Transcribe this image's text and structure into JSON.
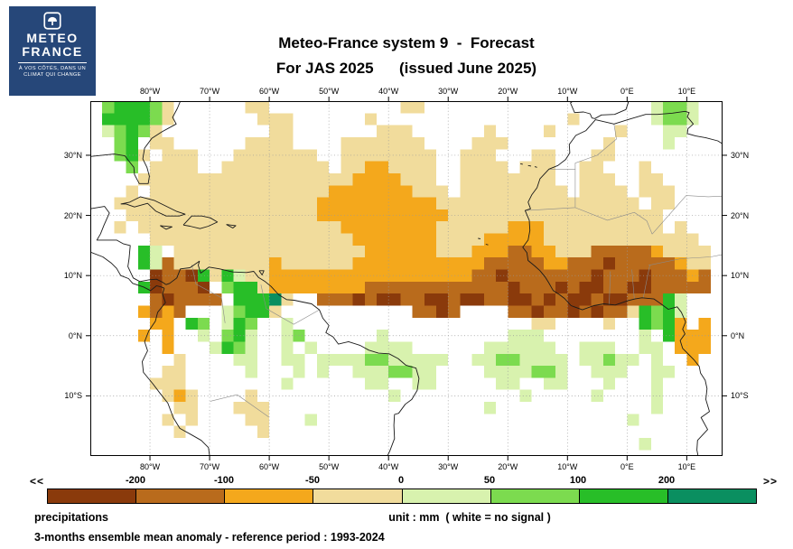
{
  "logo": {
    "brand_line1": "METEO",
    "brand_line2": "FRANCE",
    "tagline": "À VOS CÔTÉS, DANS UN CLIMAT QUI CHANGE",
    "bg_color": "#264779"
  },
  "title": {
    "line1": "Meteo-France system 9  -  Forecast",
    "line2": "For JAS 2025      (issued June 2025)"
  },
  "map": {
    "lon_tick_labels": [
      "80°W",
      "70°W",
      "60°W",
      "50°W",
      "40°W",
      "30°W",
      "20°W",
      "10°W",
      "0°E",
      "10°E"
    ],
    "lon_tick_values": [
      -80,
      -70,
      -60,
      -50,
      -40,
      -30,
      -20,
      -10,
      0,
      10
    ],
    "lat_tick_labels": [
      "30°N",
      "20°N",
      "10°N",
      "0°N",
      "10°S"
    ],
    "lat_tick_values": [
      30,
      20,
      10,
      0,
      -10
    ],
    "extent": {
      "lon_min": -90,
      "lon_max": 16,
      "lat_max": 39,
      "lat_min": -20
    }
  },
  "footer": {
    "label_left": "precipitations",
    "label_unit": "unit : mm  ( white = no signal )",
    "label_bottom": "3-months ensemble mean anomaly - reference period : 1993-2024"
  },
  "chart_data": {
    "type": "heatmap",
    "title": "Meteo-France system 9 - Forecast For JAS 2025 (issued June 2025)",
    "variable": "precipitations",
    "unit": "mm",
    "no_signal_color": "white",
    "note": "3-months ensemble mean anomaly - reference period : 1993-2024",
    "colorbar": {
      "arrow_left": "<<",
      "arrow_right": ">>",
      "boundary_labels": [
        "-200",
        "-100",
        "-50",
        "0",
        "50",
        "100",
        "200"
      ],
      "segment_order": [
        "a",
        "b",
        "c",
        "d",
        "e",
        "f",
        "g",
        "h"
      ],
      "palette": {
        "a": "#8A3A0B",
        "b": "#B96B1C",
        "c": "#F4A81C",
        "d": "#F1DC9C",
        "e": "#D8F2AE",
        "f": "#7CDB4F",
        "g": "#28BE28",
        "h": "#0A8F60"
      },
      "legend": {
        "a": "below -200 mm",
        "b": "-200 to -100 mm",
        "c": "-100 to -50 mm",
        "d": "-50 to 0 mm",
        "e": "0 to 50 mm",
        "f": "50 to 100 mm",
        "g": "100 to 200 mm",
        "h": "above 200 mm",
        ".": "white = no signal"
      }
    },
    "grid": {
      "origin_lon": -88,
      "origin_lat": 39,
      "cell_deg": 2,
      "rows": [
        [
          "fgggfd....",
          "..dd......",
          ".....dd...",
          "..........",
          "......effe",
          "..."
        ],
        [
          "ggggfd....",
          "...ddd....",
          "..d.......",
          ".........d",
          "......effe",
          "..."
        ],
        [
          "efgfd.....",
          "....dd....",
          "...ddd....",
          "..d....d..",
          "...d...ee.",
          "..."
        ],
        [
          ".fg.dd....",
          "..dddd....",
          "ddddddd...",
          ".ddd......",
          "..d....e..",
          "..."
        ],
        [
          ".fgd.ddd..",
          ".ddddddd..",
          "dddddddd..",
          "ddd...dd..",
          ".dd.......",
          "..."
        ],
        [
          "..f.dddd..",
          "ddddddddd.",
          "ddccdddd..",
          "dddd.ddd..",
          "dd...d....",
          "..."
        ],
        [
          "...ddddddd",
          "dddddddddd",
          "dccccddd..",
          "dddddddd..",
          "ddd..dd...",
          "..."
        ],
        [
          "..d.dddddd",
          "dddddddddc",
          "ccccccddd.",
          "ddddddddd.",
          "dddd.ddd..",
          "..."
        ],
        [
          ".ddddddddd",
          "ddddddddcc",
          "ccccccccdd",
          "dddddddddd",
          "ddddd.dd..",
          "..."
        ],
        [
          "..dddddddd",
          "ddddddddcc",
          "cccccccccd",
          "dddddddddd",
          "ddddddd...",
          "..."
        ],
        [
          ".d.ddddddd",
          "dddddddddd",
          "ccccccccdd",
          "ddddcccddd",
          "ddddddd.d.",
          "..."
        ],
        [
          "....dddddd",
          "dddddddddd",
          "dcccccccdd",
          "ddcccccddd",
          "dddddddddd",
          "..."
        ],
        [
          "...ge.dddd",
          "dddddddddd",
          "ddccccccdd",
          "dcccbbccdd",
          "dbbbbbcddd",
          "d.."
        ],
        [
          "...gebdddd",
          "ddddcddddd",
          "dccccccccc",
          "ccbbbbbccb",
          "bbabbbbbcd",
          "d.."
        ],
        [
          "....abbagd",
          "geddcccccc",
          "cccccccccc",
          "cbbabbbbbb",
          "babbbabbbc",
          "b.."
        ],
        [
          "...gabbba.",
          "fggdcccccc",
          "ccbbbbbbbb",
          "bbbbabbbab",
          "aabbaabbbb",
          "b.."
        ],
        [
          "....babbbb",
          ".ggghd..bb",
          "babaabbaab",
          "aabbaababa",
          "abaabbbge.",
          "..."
        ],
        [
          "...cbcb...",
          "efggd.....",
          "......bbab",
          "....bbabba",
          "babbdgfge.",
          "..."
        ],
        [
          "....cc.gf.",
          "egf..e....",
          "..........",
          "......dd..",
          "..d..gfgc.",
          "c.."
        ],
        [
          "...c.c..e.",
          "fge..ef...",
          "...e......",
          "....eee...",
          ".....e.gcc",
          "c.."
        ],
        [
          ".....c...e",
          "gfe..e.e..",
          "..eeee....",
          "..eeeeee..",
          "eee..ee.cc",
          "c.."
        ],
        [
          "......d...",
          ".ee..ee.ee",
          "eeffeeeee.",
          ".eeffeeee.",
          "eefee.e..c",
          "..."
        ],
        [
          ".....dd...",
          "..e...e.e.",
          ".eeeffee..",
          "..eeeeffe.",
          ".eee..ee..",
          "..."
        ],
        [
          "....ddd...",
          ".....e....",
          "..ee..ee..",
          "...ee..ee.",
          "..e...e...",
          "..."
        ],
        [
          ".....dcd..",
          "..d.......",
          "....e.....",
          ".....e....",
          ".e....e...",
          "..."
        ],
        [
          "......dd..",
          ".ddd......",
          "..........",
          "..e.......",
          "......e...",
          "..."
        ],
        [
          ".....d.d..",
          "..dd...e..",
          "..........",
          "..........",
          "....e.....",
          "..."
        ],
        [
          "......d...",
          "...d......",
          "..........",
          "..........",
          "..........",
          "..."
        ],
        [
          "..........",
          "..........",
          "..........",
          "..........",
          ".....e....",
          "..."
        ]
      ]
    }
  }
}
